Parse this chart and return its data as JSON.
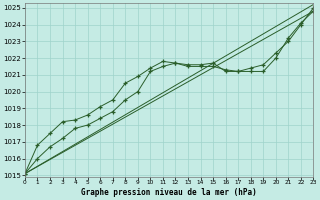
{
  "title": "Graphe pression niveau de la mer (hPa)",
  "bg_color": "#c5ebe4",
  "grid_color": "#9fd4cb",
  "line_color": "#2a5e2a",
  "xlim": [
    0,
    23
  ],
  "ylim": [
    1014.9,
    1025.3
  ],
  "xticks": [
    0,
    1,
    2,
    3,
    4,
    5,
    6,
    7,
    8,
    9,
    10,
    11,
    12,
    13,
    14,
    15,
    16,
    17,
    18,
    19,
    20,
    21,
    22,
    23
  ],
  "yticks": [
    1015,
    1016,
    1017,
    1018,
    1019,
    1020,
    1021,
    1022,
    1023,
    1024,
    1025
  ],
  "hours": [
    0,
    1,
    2,
    3,
    4,
    5,
    6,
    7,
    8,
    9,
    10,
    11,
    12,
    13,
    14,
    15,
    16,
    17,
    18,
    19,
    20,
    21,
    22,
    23
  ],
  "line_wavy1": [
    1015.1,
    1016.0,
    1016.7,
    1017.2,
    1017.8,
    1018.0,
    1018.4,
    1018.8,
    1019.5,
    1020.0,
    1021.2,
    1021.5,
    1021.7,
    1021.5,
    1021.5,
    1021.5,
    1021.3,
    1021.2,
    1021.4,
    1021.6,
    1022.3,
    1023.0,
    1024.0,
    1025.0
  ],
  "line_wavy2": [
    1015.1,
    1016.8,
    1017.5,
    1018.2,
    1018.3,
    1018.6,
    1019.1,
    1019.5,
    1020.5,
    1020.9,
    1021.4,
    1021.8,
    1021.7,
    1021.6,
    1021.6,
    1021.7,
    1021.2,
    1021.2,
    1021.2,
    1021.2,
    1022.0,
    1023.2,
    1024.1,
    1024.8
  ],
  "line_straight1": [
    1015.1,
    1025.2
  ],
  "line_straight2": [
    1015.1,
    1024.8
  ]
}
